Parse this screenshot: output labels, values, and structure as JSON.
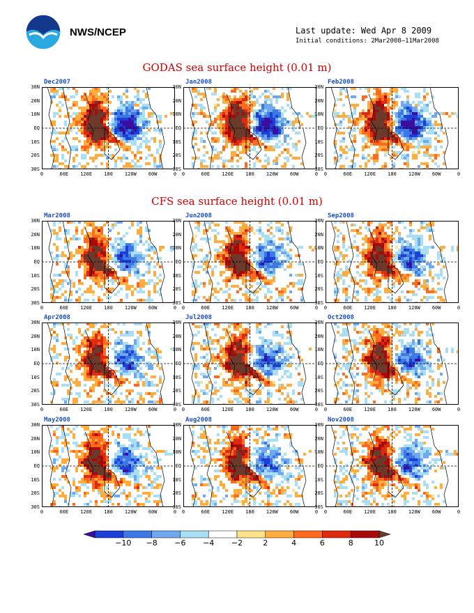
{
  "header": {
    "org": "NWS/NCEP",
    "last_update": "Last update: Wed Apr 8 2009",
    "initial_conditions": "Initial conditions: 2Mar2008–11Mar2008",
    "logo_icon": "noaa-logo-icon"
  },
  "godas": {
    "title": "GODAS sea surface height (0.01 m)",
    "panels": [
      "Dec2007",
      "Jan2008",
      "Feb2008"
    ]
  },
  "cfs": {
    "title": "CFS sea surface height (0.01 m)",
    "panels": [
      [
        "Mar2008",
        "Jun2008",
        "Sep2008"
      ],
      [
        "Apr2008",
        "Jul2008",
        "Oct2008"
      ],
      [
        "May2008",
        "Aug2008",
        "Nov2008"
      ]
    ]
  },
  "axes": {
    "y_ticks": [
      "30N",
      "20N",
      "10N",
      "EQ",
      "10S",
      "20S",
      "30S"
    ],
    "x_ticks": [
      "0",
      "60E",
      "120E",
      "180",
      "120W",
      "60W",
      "0"
    ]
  },
  "colorbar": {
    "labels": [
      "−10",
      "−8",
      "−6",
      "−4",
      "−2",
      "2",
      "4",
      "6",
      "8",
      "10"
    ],
    "colors": [
      "#3a0fa0",
      "#1c3fd8",
      "#3c78e6",
      "#6fa8ee",
      "#a9dff5",
      "#ffffff",
      "#ffe28a",
      "#ffae3d",
      "#ff6a1e",
      "#e02a10",
      "#a80a0a",
      "#6b3a2a"
    ]
  }
}
